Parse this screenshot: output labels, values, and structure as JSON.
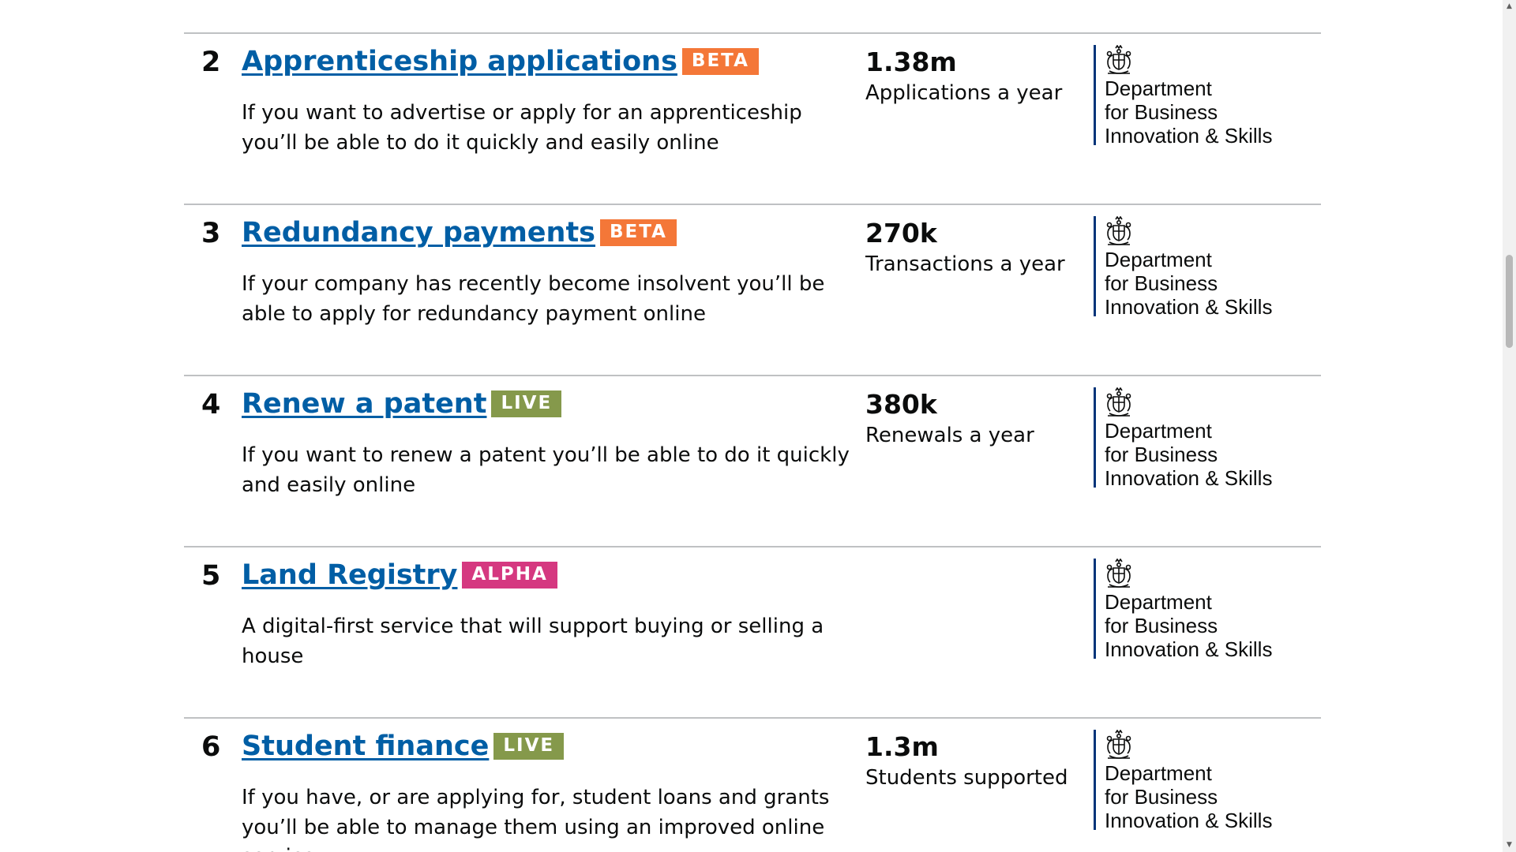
{
  "services": [
    {
      "number": "2",
      "title": "Apprenticeship applications",
      "badge": "BETA",
      "badge_color": "#f47738",
      "description": "If you want to advertise or apply for an apprenticeship you’ll be able to do it quickly and easily online",
      "stat_value": "1.38m",
      "stat_label": "Applications a year",
      "department": [
        "Department",
        "for Business",
        "Innovation & Skills"
      ]
    },
    {
      "number": "3",
      "title": "Redundancy payments",
      "badge": "BETA",
      "badge_color": "#f47738",
      "description": "If your company has recently become insolvent you’ll be able to apply for redundancy payment online",
      "stat_value": "270k",
      "stat_label": "Transactions a year",
      "department": [
        "Department",
        "for Business",
        "Innovation & Skills"
      ]
    },
    {
      "number": "4",
      "title": "Renew a patent",
      "badge": "LIVE",
      "badge_color": "#85994b",
      "description": "If you want to renew a patent you’ll be able to do it quickly and easily online",
      "stat_value": "380k",
      "stat_label": "Renewals a year",
      "department": [
        "Department",
        "for Business",
        "Innovation & Skills"
      ]
    },
    {
      "number": "5",
      "title": "Land Registry",
      "badge": "ALPHA",
      "badge_color": "#d53880",
      "description": "A digital-first service that will support buying or selling a house",
      "stat_value": "",
      "stat_label": "",
      "department": [
        "Department",
        "for Business",
        "Innovation & Skills"
      ]
    },
    {
      "number": "6",
      "title": "Student finance",
      "badge": "LIVE",
      "badge_color": "#85994b",
      "description": "If you have, or are applying for, student loans and grants you’ll be able to manage them using an improved online service",
      "stat_value": "1.3m",
      "stat_label": "Students supported",
      "department": [
        "Department",
        "for Business",
        "Innovation & Skills"
      ]
    }
  ],
  "icons": {
    "crest": "royal-coat-of-arms-icon",
    "scroll_up": "arrow-up-icon",
    "scroll_down": "arrow-down-icon"
  },
  "colors": {
    "link": "#005ea5",
    "text": "#0b0c0c",
    "divider": "#bfc1c3",
    "department_border": "#003479"
  }
}
